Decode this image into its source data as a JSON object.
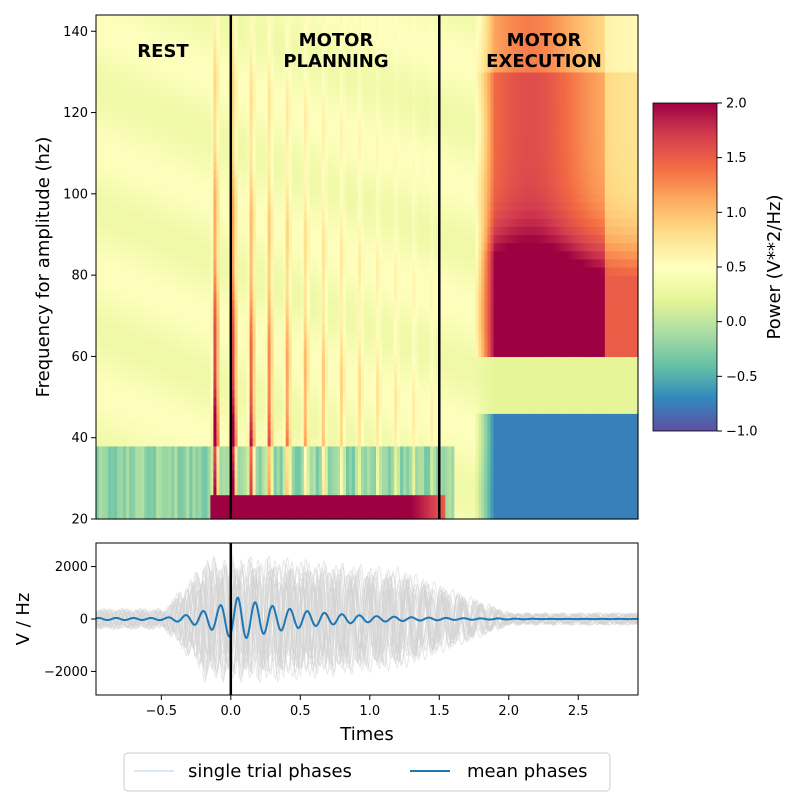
{
  "chart_data": [
    {
      "type": "heatmap",
      "title": "",
      "xlabel": "",
      "ylabel": "Frequency for amplitude (hz)",
      "x_range": [
        -0.97,
        2.93
      ],
      "ylim": [
        20,
        144
      ],
      "y_ticks": [
        20,
        40,
        60,
        80,
        100,
        120,
        140
      ],
      "y_tick_labels": [
        "20",
        "40",
        "60",
        "80",
        "100",
        "120",
        "140"
      ],
      "colormap": "Spectral_r",
      "colorbar": {
        "label": "Power (V**2/Hz)",
        "range": [
          -1.0,
          2.0
        ],
        "ticks": [
          -1.0,
          -0.5,
          0.0,
          0.5,
          1.0,
          1.5,
          2.0
        ],
        "tick_labels": [
          "−1.0",
          "−0.5",
          "0.0",
          "0.5",
          "1.0",
          "1.5",
          "2.0"
        ]
      },
      "vlines": [
        0.0,
        1.5
      ],
      "annotations": [
        {
          "text": "REST",
          "x": -0.5,
          "y": 134
        },
        {
          "text": "MOTOR\nPLANNING",
          "x": 0.75,
          "y": 134
        },
        {
          "text": "MOTOR\nEXECUTION",
          "x": 2.25,
          "y": 134
        }
      ],
      "regions": [
        {
          "label": "REST",
          "t_range": [
            -0.97,
            0.0
          ],
          "note": "mostly neutral power (~0 to 0.5), low power (blue) below ~38 Hz"
        },
        {
          "label": "MOTOR PLANNING",
          "t_range": [
            0.0,
            1.5
          ],
          "note": "vertical high-power stripes, strong power (~2) at 20-26 Hz, decreasing with time"
        },
        {
          "label": "MOTOR EXECUTION",
          "t_range": [
            1.8,
            2.93
          ],
          "note": "high-gamma power increase (1 to 2) at ~60-135 Hz peaking near 70 Hz around t=2.1, low power (~-0.8) at 20-45 Hz"
        }
      ]
    },
    {
      "type": "line",
      "xlabel": "Times",
      "ylabel": "V / Hz",
      "xlim": [
        -0.97,
        2.93
      ],
      "ylim": [
        -2900,
        2900
      ],
      "x_ticks": [
        -0.5,
        0.0,
        0.5,
        1.0,
        1.5,
        2.0,
        2.5
      ],
      "x_tick_labels": [
        "−0.5",
        "0.0",
        "0.5",
        "1.0",
        "1.5",
        "2.0",
        "2.5"
      ],
      "y_ticks": [
        -2000,
        0,
        2000
      ],
      "y_tick_labels": [
        "−2000",
        "0",
        "2000"
      ],
      "vline": 0.0,
      "series": [
        {
          "name": "single trial phases",
          "color": "#d3d3d3",
          "note": "many gray overlapping traces, envelope up to ~2800 between t=-0.2 and t=1.2, decaying to ~200 after t=2.0"
        },
        {
          "name": "mean phases",
          "color": "#1f77b4",
          "oscillation_hz": 8,
          "peak_amplitude": 820,
          "peak_time": 0.05,
          "note": "oscillation with amplitude ~50 before -0.5, ~820 around 0.0, decaying to ~0 by 1.9"
        }
      ],
      "legend": {
        "position": "bottom-center",
        "entries": [
          "single trial phases",
          "mean phases"
        ]
      }
    }
  ],
  "colors": {
    "mean_line": "#1f77b4",
    "trial_lines": "#d3d3d3",
    "vline": "#000000"
  }
}
